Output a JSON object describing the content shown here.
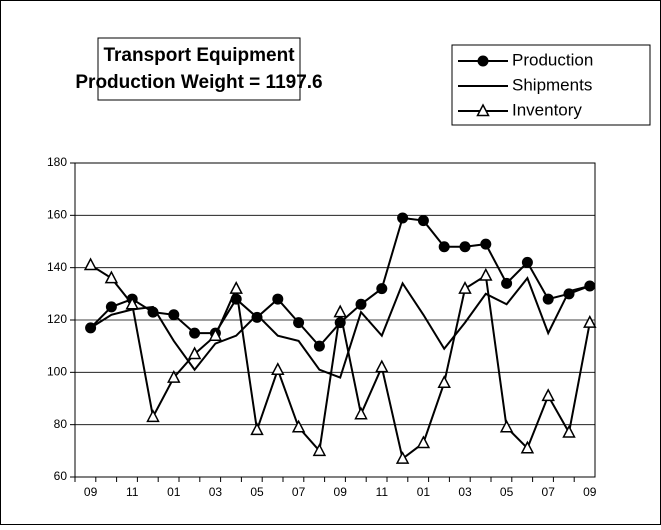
{
  "chart_data": {
    "type": "line",
    "title": [
      "Transport Equipment",
      "Production Weight = 1197.6"
    ],
    "categories": [
      "09",
      null,
      "11",
      null,
      "01",
      null,
      "03",
      null,
      "05",
      null,
      "07",
      null,
      "09",
      null,
      "11",
      null,
      "01",
      null,
      "03",
      null,
      "05",
      null,
      "07",
      null,
      "09"
    ],
    "series": [
      {
        "name": "Production",
        "color": "#000000",
        "marker": "circle",
        "values": [
          117,
          125,
          128,
          123,
          122,
          115,
          115,
          128,
          121,
          128,
          119,
          110,
          119,
          126,
          132,
          159,
          158,
          148,
          148,
          149,
          134,
          142,
          128,
          130,
          133
        ]
      },
      {
        "name": "Shipments",
        "color": "#000000",
        "marker": "none",
        "values": [
          117,
          122,
          124,
          125,
          112,
          101,
          111,
          114,
          122,
          114,
          112,
          101,
          98,
          123,
          114,
          134,
          122,
          109,
          119,
          130,
          126,
          136,
          115,
          131,
          133
        ]
      },
      {
        "name": "Inventory",
        "color": "#000000",
        "marker": "triangle",
        "values": [
          141,
          136,
          126,
          83,
          98,
          107,
          114,
          132,
          78,
          101,
          79,
          70,
          123,
          84,
          102,
          67,
          73,
          96,
          132,
          137,
          79,
          71,
          91,
          77,
          119
        ]
      }
    ],
    "ylim": [
      60,
      180
    ],
    "yticks": [
      60,
      80,
      100,
      120,
      140,
      160,
      180
    ],
    "grid": true,
    "legend": "top-right"
  }
}
